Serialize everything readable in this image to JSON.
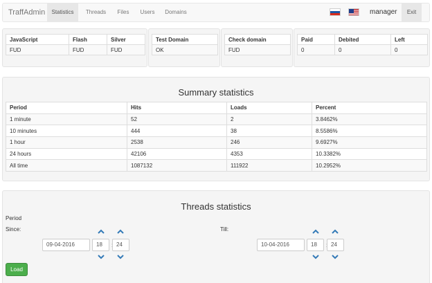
{
  "navbar": {
    "brand": "TraffAdmin",
    "items": [
      {
        "label": "Statistics",
        "active": true
      },
      {
        "label": "Threads",
        "active": false
      },
      {
        "label": "Files",
        "active": false
      },
      {
        "label": "Users",
        "active": false
      },
      {
        "label": "Domains",
        "active": false
      }
    ],
    "flags": [
      "flag-ru-icon",
      "flag-us-icon"
    ],
    "user": "manager",
    "exit_label": "Exit"
  },
  "top_panels": {
    "files": {
      "headers": [
        "JavaScript",
        "Flash",
        "Silver"
      ],
      "values": [
        "FUD",
        "FUD",
        "FUD"
      ]
    },
    "test_domain": {
      "headers": [
        "Test Domain"
      ],
      "values": [
        "OK"
      ]
    },
    "check_domain": {
      "headers": [
        "Check domain"
      ],
      "values": [
        "FUD"
      ]
    },
    "balance": {
      "headers": [
        "Paid",
        "Debited",
        "Left"
      ],
      "values": [
        "0",
        "0",
        "0"
      ]
    }
  },
  "summary": {
    "title": "Summary statistics",
    "headers": [
      "Period",
      "Hits",
      "Loads",
      "Percent"
    ],
    "rows": [
      [
        "1 minute",
        "52",
        "2",
        "3.8462%"
      ],
      [
        "10 minutes",
        "444",
        "38",
        "8.5586%"
      ],
      [
        "1 hour",
        "2538",
        "246",
        "9.6927%"
      ],
      [
        "24 hours",
        "42106",
        "4353",
        "10.3382%"
      ],
      [
        "All time",
        "1087132",
        "111922",
        "10.2952%"
      ]
    ]
  },
  "threads": {
    "title": "Threads statistics",
    "period_label": "Period",
    "since": {
      "label": "Since:",
      "date": "09-04-2016",
      "hour": "18",
      "minute": "24"
    },
    "till": {
      "label": "Till:",
      "date": "10-04-2016",
      "hour": "18",
      "minute": "24"
    },
    "load_label": "Load"
  },
  "colors": {
    "accent": "#337ab7",
    "success": "#4cae4c",
    "panel_bg": "#f5f5f5"
  }
}
